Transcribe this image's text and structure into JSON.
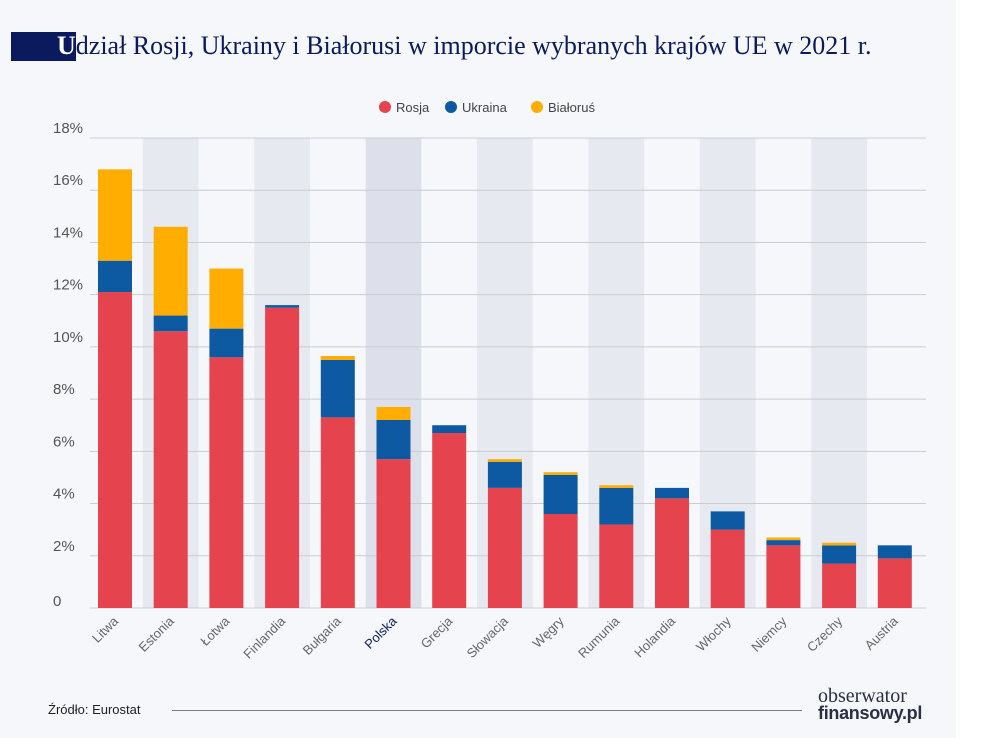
{
  "title": {
    "first_letter": "U",
    "rest": "dział Rosji, Ukrainy i Białorusi w imporcie wybranych krajów UE w 2021 r."
  },
  "source": "Źródło: Eurostat",
  "logo": {
    "line1": "obserwator",
    "line2": "finansowy.pl"
  },
  "chart_data": {
    "type": "bar",
    "stacked": true,
    "title": "Udział Rosji, Ukrainy i Białorusi w imporcie wybranych krajów UE w 2021 r.",
    "categories": [
      "Litwa",
      "Estonia",
      "Łotwa",
      "Finlandia",
      "Bułgaria",
      "Polska",
      "Grecja",
      "Słowacja",
      "Węgry",
      "Rumunia",
      "Holandia",
      "Włochy",
      "Niemcy",
      "Czechy",
      "Austria"
    ],
    "highlighted_category": "Polska",
    "series": [
      {
        "name": "Rosja",
        "color": "#e5434e",
        "values": [
          12.1,
          10.6,
          9.6,
          11.5,
          7.3,
          5.7,
          6.7,
          4.6,
          3.6,
          3.2,
          4.2,
          3.0,
          2.4,
          1.7,
          1.9
        ]
      },
      {
        "name": "Ukraina",
        "color": "#0d5aa3",
        "values": [
          1.2,
          0.6,
          1.1,
          0.1,
          2.2,
          1.5,
          0.3,
          1.0,
          1.5,
          1.4,
          0.4,
          0.7,
          0.2,
          0.7,
          0.5
        ]
      },
      {
        "name": "Białoruś",
        "color": "#ffad00",
        "values": [
          3.5,
          3.4,
          2.3,
          0.0,
          0.15,
          0.5,
          0.0,
          0.1,
          0.1,
          0.1,
          0.0,
          0.0,
          0.1,
          0.1,
          0.0
        ]
      }
    ],
    "ylim": [
      0,
      18
    ],
    "yticks": [
      0,
      2,
      4,
      6,
      8,
      10,
      12,
      14,
      16,
      18
    ],
    "ytick_labels": [
      "0",
      "2%",
      "4%",
      "6%",
      "8%",
      "10%",
      "12%",
      "14%",
      "16%",
      "18%"
    ],
    "grid": true,
    "legend_position": "top-center",
    "xlabel": "",
    "ylabel": ""
  }
}
